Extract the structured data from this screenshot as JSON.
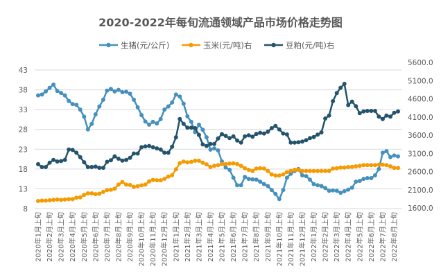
{
  "chart_data": {
    "type": "line",
    "title": "2020-2022年每旬流通领域产品市场价格走势图",
    "legend_position": "top",
    "grid": true,
    "y_left": {
      "ticks": [
        8,
        13,
        18,
        23,
        28,
        33,
        38,
        43
      ],
      "range": [
        8,
        43
      ]
    },
    "y_right": {
      "ticks": [
        "1600.0",
        "2100.0",
        "2600.0",
        "3100.0",
        "3600.0",
        "4100.0",
        "4600.0",
        "5100.0",
        "5600.0"
      ],
      "range": [
        1600,
        5600
      ]
    },
    "x_tick_labels": [
      "2020年1月上旬",
      "2020年2月上旬",
      "2020年3月上旬",
      "2020年4月上旬",
      "2020年5月上旬",
      "2020年6月上旬",
      "2020年7月上旬",
      "2020年8月上旬",
      "2020年9月上旬",
      "2020年10月上旬",
      "2020年11月上旬",
      "2020年12月上旬",
      "2021年1月上旬",
      "2021年2月上旬",
      "2021年3月上旬",
      "2021年4月上旬",
      "2021年5月上旬",
      "2021年6月上旬",
      "2021年7月上旬",
      "2021年8月上旬",
      "2021年9月上旬",
      "2021年10月上旬",
      "2021年11月上旬",
      "2021年12月上旬",
      "2022年1月上旬",
      "2022年2月上旬",
      "2022年3月上旬",
      "2022年4月上旬",
      "2022年5月上旬",
      "2022年6月上旬",
      "2022年7月上旬",
      "2022年8月上旬"
    ],
    "series": [
      {
        "name": "生猪(元/公斤)",
        "axis": "left",
        "color": "#4590BC",
        "values": [
          36.6,
          36.8,
          37.6,
          38.5,
          39.3,
          37.7,
          37.2,
          36.6,
          35.2,
          34.4,
          34.2,
          33.0,
          31.2,
          28.0,
          29.4,
          31.8,
          33.8,
          35.5,
          37.8,
          38.2,
          37.6,
          38.0,
          37.4,
          37.5,
          37.0,
          35.5,
          33.6,
          31.6,
          30.0,
          29.2,
          29.9,
          29.5,
          30.6,
          33.0,
          33.8,
          34.8,
          36.8,
          36.3,
          34.5,
          31.3,
          29.9,
          27.3,
          29.2,
          27.9,
          26.0,
          22.9,
          23.2,
          22.7,
          19.9,
          18.4,
          17.8,
          15.8,
          13.9,
          13.9,
          16.0,
          15.5,
          15.4,
          15.3,
          14.8,
          14.2,
          13.7,
          12.7,
          11.7,
          10.4,
          12.7,
          15.8,
          16.8,
          17.5,
          18.0,
          16.4,
          16.2,
          15.3,
          14.2,
          13.9,
          13.7,
          13.2,
          12.5,
          12.6,
          12.5,
          12.0,
          12.4,
          12.8,
          13.3,
          14.8,
          15.0,
          15.5,
          15.7,
          15.7,
          16.4,
          18.0,
          22.1,
          22.5,
          21.0,
          21.4,
          21.2
        ]
      },
      {
        "name": "玉米(元/吨)右",
        "axis": "right",
        "color": "#F59A00",
        "values": [
          1790,
          1800,
          1800,
          1810,
          1820,
          1830,
          1820,
          1830,
          1840,
          1840,
          1880,
          1890,
          1960,
          2000,
          2000,
          1980,
          1990,
          2040,
          2090,
          2100,
          2130,
          2240,
          2310,
          2240,
          2230,
          2180,
          2200,
          2220,
          2240,
          2330,
          2370,
          2360,
          2360,
          2400,
          2460,
          2500,
          2660,
          2830,
          2875,
          2853,
          2864,
          2897,
          2897,
          2842,
          2799,
          2723,
          2756,
          2777,
          2810,
          2806,
          2819,
          2825,
          2806,
          2756,
          2692,
          2648,
          2616,
          2680,
          2692,
          2680,
          2616,
          2521,
          2489,
          2489,
          2521,
          2585,
          2616,
          2648,
          2648,
          2616,
          2616,
          2616,
          2616,
          2616,
          2616,
          2616,
          2616,
          2680,
          2692,
          2711,
          2711,
          2724,
          2730,
          2743,
          2756,
          2775,
          2775,
          2775,
          2775,
          2788,
          2788,
          2775,
          2743,
          2699,
          2699
        ]
      },
      {
        "name": "豆粕(元/吨)右",
        "axis": "right",
        "color": "#24536B",
        "values": [
          2801,
          2724,
          2724,
          2844,
          2920,
          2877,
          2888,
          2920,
          3204,
          3193,
          3117,
          2997,
          2855,
          2724,
          2724,
          2735,
          2703,
          2703,
          2866,
          2910,
          3018,
          2953,
          2899,
          2920,
          2975,
          3095,
          3095,
          3269,
          3291,
          3302,
          3269,
          3236,
          3204,
          3117,
          3117,
          3280,
          3541,
          4042,
          3911,
          3803,
          3803,
          3792,
          3607,
          3345,
          3302,
          3356,
          3356,
          3509,
          3628,
          3581,
          3518,
          3568,
          3454,
          3397,
          3568,
          3594,
          3556,
          3632,
          3664,
          3645,
          3696,
          3791,
          3854,
          3759,
          3645,
          3619,
          3397,
          3397,
          3404,
          3423,
          3461,
          3518,
          3549,
          3613,
          3676,
          4057,
          4140,
          4534,
          4757,
          4902,
          5010,
          4426,
          4521,
          4394,
          4204,
          4254,
          4267,
          4267,
          4267,
          4108,
          4044,
          4140,
          4108,
          4216,
          4254
        ]
      }
    ]
  }
}
